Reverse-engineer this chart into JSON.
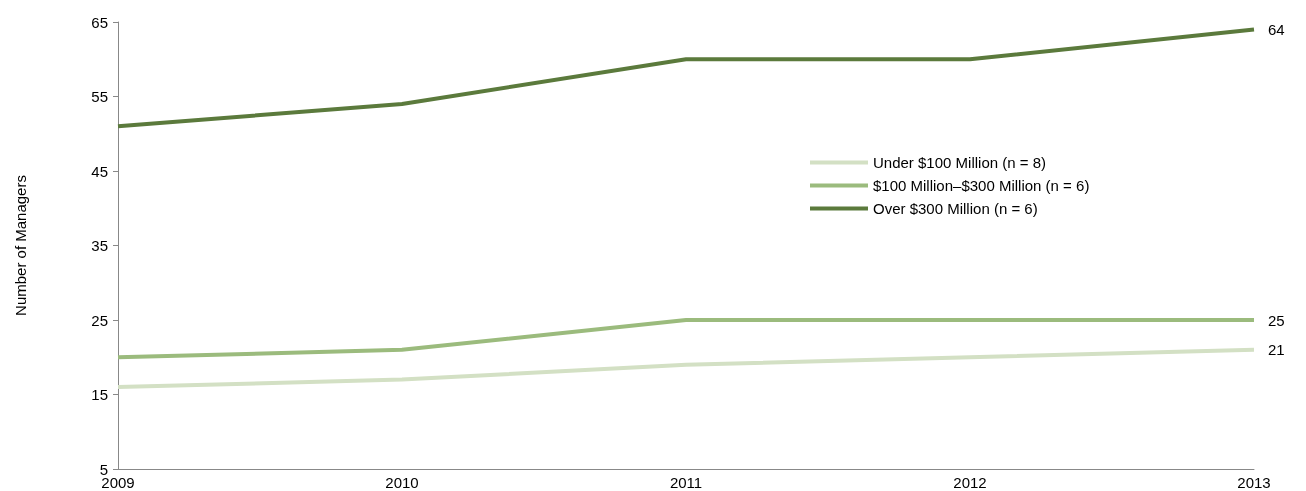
{
  "chart_data": {
    "type": "line",
    "ylabel": "Number of Managers",
    "categories": [
      "2009",
      "2010",
      "2011",
      "2012",
      "2013"
    ],
    "series": [
      {
        "name": "Under $100 Million (n = 8)",
        "color": "#d3e0c4",
        "values": [
          16,
          17,
          19,
          20,
          21
        ],
        "value_labels": [
          null,
          null,
          null,
          null,
          "21"
        ]
      },
      {
        "name": "$100 Million–$300 Million (n = 6)",
        "color": "#9bbb7d",
        "values": [
          20,
          21,
          25,
          25,
          25
        ],
        "value_labels": [
          null,
          null,
          null,
          null,
          "25"
        ]
      },
      {
        "name": "Over $300 Million (n = 6)",
        "color": "#5b7a3c",
        "values": [
          51,
          54,
          60,
          60,
          64
        ],
        "value_labels": [
          null,
          null,
          null,
          null,
          "64"
        ]
      }
    ],
    "ylim": [
      5,
      65
    ],
    "yticks": [
      5,
      15,
      25,
      35,
      45,
      55,
      65
    ],
    "grid": false,
    "legend": "right",
    "marker": "none"
  }
}
